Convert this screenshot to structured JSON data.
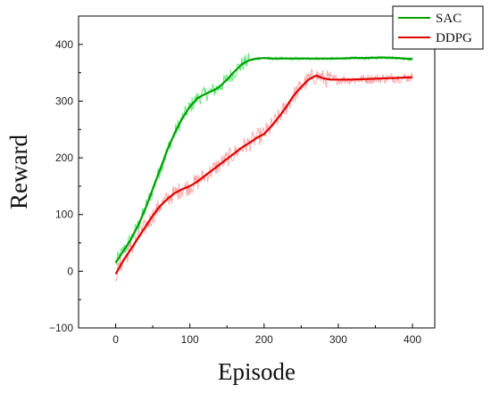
{
  "chart_data": {
    "type": "line",
    "title": "",
    "xlabel": "Episode",
    "ylabel": "Reward",
    "xlim": [
      -50,
      430
    ],
    "ylim": [
      -100,
      450
    ],
    "xticks": [
      0,
      100,
      200,
      300,
      400
    ],
    "yticks": [
      -100,
      0,
      100,
      200,
      300,
      400
    ],
    "grid": false,
    "legend": "top-right",
    "series": [
      {
        "name": "SAC",
        "color": "#00a000",
        "raw_color": "#22dd44",
        "x": [
          0,
          10,
          20,
          30,
          40,
          50,
          60,
          70,
          80,
          90,
          100,
          110,
          120,
          130,
          140,
          150,
          160,
          170,
          180,
          190,
          200,
          210,
          220,
          240,
          260,
          280,
          300,
          320,
          340,
          360,
          380,
          400
        ],
        "values": [
          15,
          35,
          55,
          80,
          110,
          145,
          180,
          215,
          245,
          270,
          290,
          305,
          312,
          318,
          325,
          338,
          352,
          365,
          372,
          375,
          376,
          375,
          375,
          375,
          375,
          375,
          375,
          376,
          376,
          377,
          376,
          374
        ]
      },
      {
        "name": "DDPG",
        "color": "#e00000",
        "raw_color": "#ff8080",
        "x": [
          0,
          10,
          20,
          30,
          40,
          50,
          60,
          70,
          80,
          90,
          100,
          110,
          120,
          130,
          140,
          150,
          160,
          170,
          180,
          190,
          200,
          210,
          220,
          230,
          240,
          250,
          260,
          270,
          280,
          290,
          300,
          320,
          340,
          360,
          380,
          400
        ],
        "values": [
          -5,
          18,
          38,
          58,
          78,
          98,
          115,
          128,
          138,
          145,
          150,
          158,
          168,
          178,
          188,
          198,
          208,
          218,
          226,
          235,
          242,
          256,
          272,
          290,
          310,
          325,
          338,
          345,
          340,
          338,
          338,
          338,
          339,
          340,
          341,
          342
        ]
      }
    ]
  }
}
